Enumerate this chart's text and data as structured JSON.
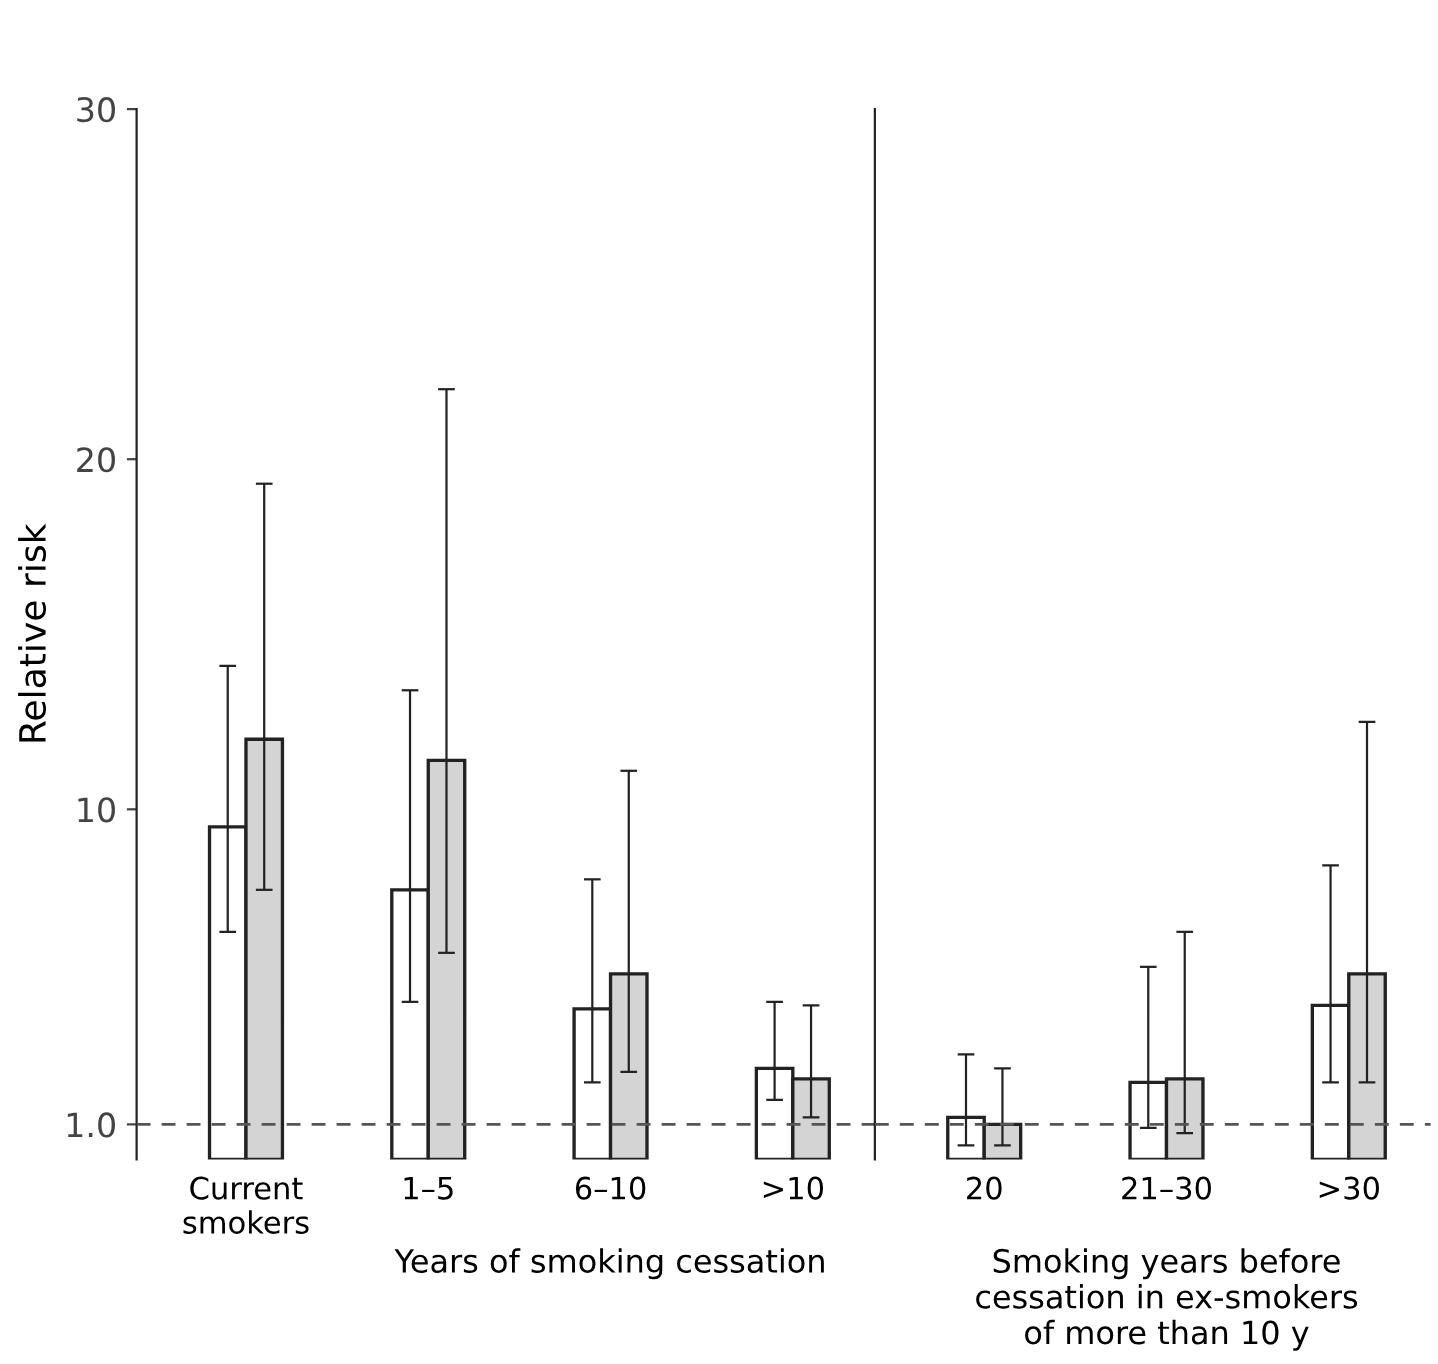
{
  "chart_data": [
    {
      "type": "bar",
      "ylabel": "Relative risk",
      "categories": [
        "Current\nsmokers",
        "1–5",
        "6–10",
        ">10"
      ],
      "series": [
        {
          "color": "#ffffff",
          "values": [
            9.5,
            7.7,
            4.3,
            2.6
          ],
          "errors": [
            [
              6.5,
              14.1
            ],
            [
              4.5,
              13.4
            ],
            [
              2.2,
              8.0
            ],
            [
              1.7,
              4.5
            ]
          ]
        },
        {
          "color": "#d4d4d4",
          "values": [
            12.0,
            11.4,
            5.3,
            2.3
          ],
          "errors": [
            [
              7.7,
              19.3
            ],
            [
              5.9,
              22.0
            ],
            [
              2.5,
              11.1
            ],
            [
              1.2,
              4.4
            ]
          ]
        }
      ],
      "ylim": [
        0,
        30
      ],
      "yticks": [
        {
          "value": 1,
          "label": "1.0"
        },
        10,
        20,
        30
      ],
      "ref_lines": [
        {
          "axis": "y",
          "value": 1,
          "color": "#555555",
          "line_style": "dashed"
        }
      ],
      "annotations": [
        "Years of smoking cessation"
      ],
      "grid": false,
      "legend": false
    },
    {
      "type": "bar",
      "categories": [
        "20",
        "21–30",
        ">30"
      ],
      "series": [
        {
          "color": "#ffffff",
          "values": [
            1.2,
            2.2,
            4.4
          ],
          "errors": [
            [
              0.4,
              3.0
            ],
            [
              0.9,
              5.5
            ],
            [
              2.2,
              8.4
            ]
          ]
        },
        {
          "color": "#d4d4d4",
          "values": [
            1.0,
            2.3,
            5.3
          ],
          "errors": [
            [
              0.4,
              2.6
            ],
            [
              0.75,
              6.5
            ],
            [
              2.2,
              12.5
            ]
          ]
        }
      ],
      "ylim": [
        0,
        30
      ],
      "tick_labels": "x",
      "ref_lines": [
        {
          "axis": "y",
          "value": 1,
          "color": "#555555",
          "line_style": "dashed"
        }
      ],
      "annotations": [
        "Smoking years before\ncessation in ex-smokers\nof more than 10 y"
      ],
      "grid": false,
      "legend": false
    }
  ]
}
